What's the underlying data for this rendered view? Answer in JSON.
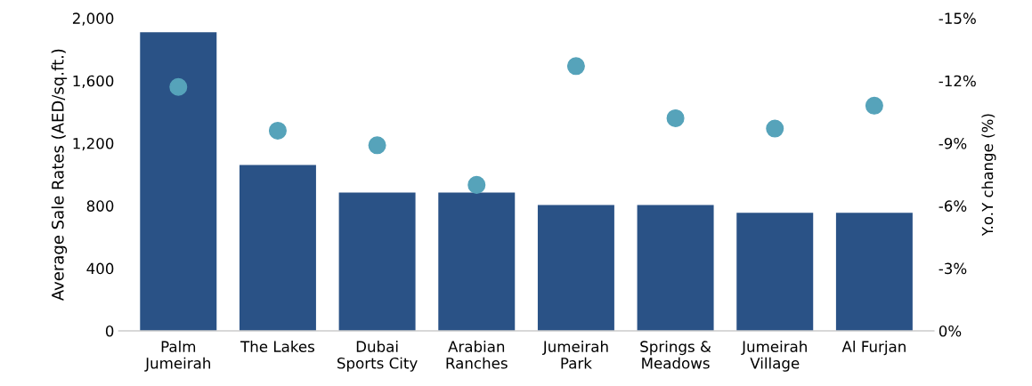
{
  "chart_data": {
    "type": "bar",
    "categories": [
      "Palm\nJumeirah",
      "The Lakes",
      "Dubai\nSports City",
      "Arabian\nRanches",
      "Jumeirah\nPark",
      "Springs &\nMeadows",
      "Jumeirah\nVillage",
      "Al Furjan"
    ],
    "ylabel": "Average Sale Rates (AED/sq.ft.)",
    "y2label": "Y.o.Y change (%)",
    "series": [
      {
        "color": "#2a5286",
        "values": [
          1910,
          1060,
          885,
          885,
          805,
          805,
          755,
          755
        ]
      },
      {
        "type": "scatter",
        "axis": "y2",
        "color": "#56a3ba",
        "values": [
          -11.7,
          -9.6,
          -8.9,
          -7.0,
          -12.7,
          -10.2,
          -9.7,
          -10.8
        ]
      }
    ],
    "ylim": [
      0,
      2000
    ],
    "yticks": [
      0,
      {
        "value": 400,
        "label": "400"
      },
      {
        "value": 800,
        "label": "800"
      },
      {
        "value": 1200,
        "label": "1,200"
      },
      {
        "value": 1600,
        "label": "1,600"
      },
      {
        "value": 2000,
        "label": "2,000"
      }
    ],
    "y2lim": [
      0,
      -15
    ],
    "y2ticks": [
      {
        "value": 0,
        "label": "0%"
      },
      {
        "value": -3,
        "label": "-3%"
      },
      {
        "value": -6,
        "label": "-6%"
      },
      {
        "value": -9,
        "label": "-9%"
      },
      {
        "value": -12,
        "label": "-12%"
      },
      {
        "value": -15,
        "label": "-15%"
      }
    ],
    "grid": false,
    "legend": false,
    "marker": "circle"
  }
}
